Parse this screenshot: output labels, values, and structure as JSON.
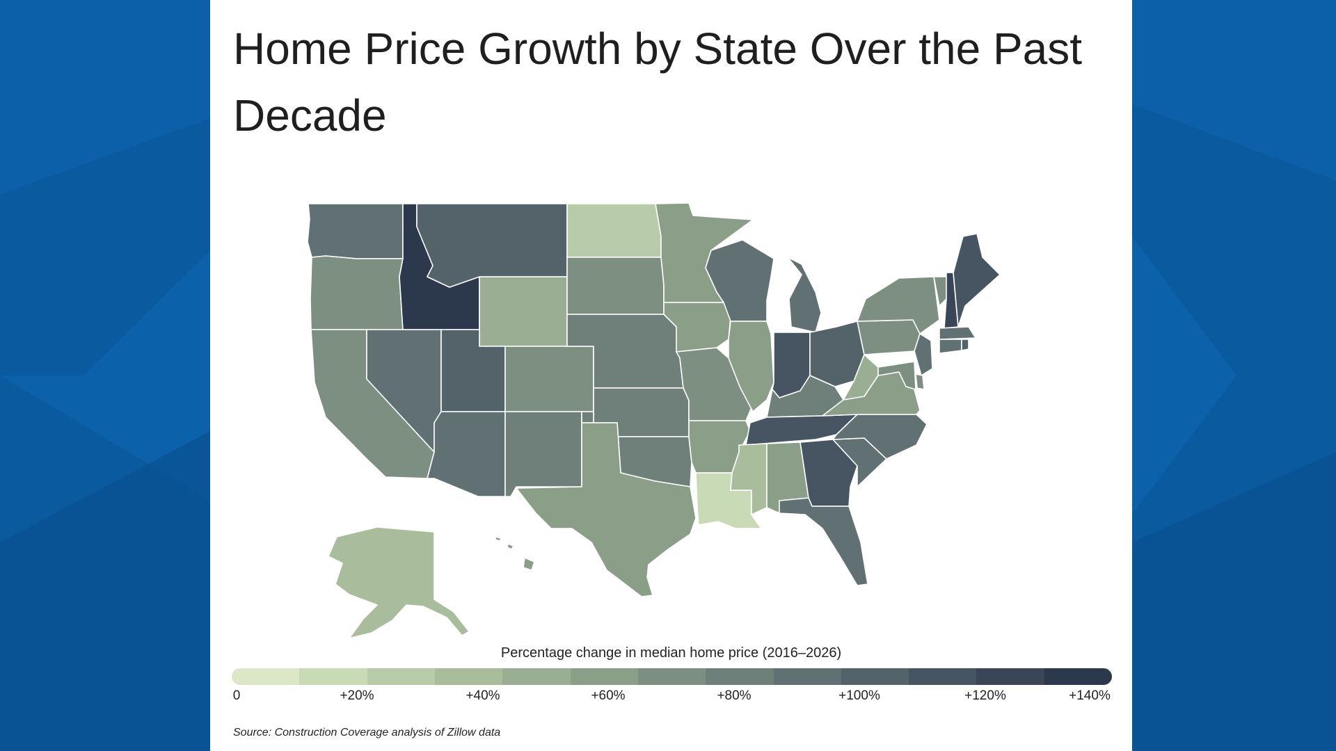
{
  "title": "Home Price Growth by State Over the Past Decade",
  "legend": {
    "title": "Percentage change in median home price (2016–2026)",
    "tick_labels": [
      "0",
      "+20%",
      "+40%",
      "+60%",
      "+80%",
      "+100%",
      "+120%",
      "+140%"
    ],
    "colors": [
      "#dbe8c8",
      "#c9dbb6",
      "#b9cca9",
      "#a9bd9d",
      "#99ae92",
      "#8a9e88",
      "#7c8f80",
      "#6e8079",
      "#617072",
      "#54626a",
      "#475461",
      "#3a4657",
      "#2c384b"
    ]
  },
  "source": "Source: Construction Coverage analysis of Zillow data",
  "colors": {
    "background": "#0a5aa0",
    "card": "#ffffff",
    "state_border": "#ffffff"
  },
  "map": {
    "states": [
      {
        "id": "WA",
        "change_bin": 8
      },
      {
        "id": "OR",
        "change_bin": 6
      },
      {
        "id": "CA",
        "change_bin": 6
      },
      {
        "id": "ID",
        "change_bin": 12
      },
      {
        "id": "NV",
        "change_bin": 8
      },
      {
        "id": "MT",
        "change_bin": 9
      },
      {
        "id": "WY",
        "change_bin": 4
      },
      {
        "id": "UT",
        "change_bin": 9
      },
      {
        "id": "AZ",
        "change_bin": 8
      },
      {
        "id": "CO",
        "change_bin": 6
      },
      {
        "id": "NM",
        "change_bin": 7
      },
      {
        "id": "ND",
        "change_bin": 2
      },
      {
        "id": "SD",
        "change_bin": 6
      },
      {
        "id": "NE",
        "change_bin": 7
      },
      {
        "id": "KS",
        "change_bin": 7
      },
      {
        "id": "OK",
        "change_bin": 7
      },
      {
        "id": "TX",
        "change_bin": 5
      },
      {
        "id": "MN",
        "change_bin": 5
      },
      {
        "id": "IA",
        "change_bin": 5
      },
      {
        "id": "MO",
        "change_bin": 6
      },
      {
        "id": "AR",
        "change_bin": 5
      },
      {
        "id": "LA",
        "change_bin": 1
      },
      {
        "id": "WI",
        "change_bin": 8
      },
      {
        "id": "IL",
        "change_bin": 5
      },
      {
        "id": "MI",
        "change_bin": 8
      },
      {
        "id": "IN",
        "change_bin": 10
      },
      {
        "id": "OH",
        "change_bin": 9
      },
      {
        "id": "KY",
        "change_bin": 7
      },
      {
        "id": "TN",
        "change_bin": 10
      },
      {
        "id": "MS",
        "change_bin": 3
      },
      {
        "id": "AL",
        "change_bin": 5
      },
      {
        "id": "GA",
        "change_bin": 10
      },
      {
        "id": "FL",
        "change_bin": 8
      },
      {
        "id": "SC",
        "change_bin": 8
      },
      {
        "id": "NC",
        "change_bin": 8
      },
      {
        "id": "VA",
        "change_bin": 5
      },
      {
        "id": "WV",
        "change_bin": 4
      },
      {
        "id": "PA",
        "change_bin": 6
      },
      {
        "id": "NY",
        "change_bin": 6
      },
      {
        "id": "VT",
        "change_bin": 6
      },
      {
        "id": "NH",
        "change_bin": 11
      },
      {
        "id": "ME",
        "change_bin": 10
      },
      {
        "id": "MA",
        "change_bin": 8
      },
      {
        "id": "CT",
        "change_bin": 8
      },
      {
        "id": "RI",
        "change_bin": 9
      },
      {
        "id": "NJ",
        "change_bin": 8
      },
      {
        "id": "DE",
        "change_bin": 6
      },
      {
        "id": "MD",
        "change_bin": 6
      },
      {
        "id": "AK",
        "change_bin": 3
      },
      {
        "id": "HI",
        "change_bin": 5
      }
    ]
  }
}
